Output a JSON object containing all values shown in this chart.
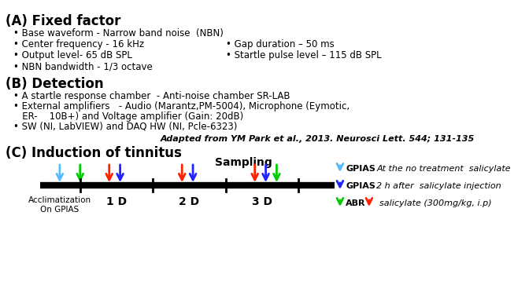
{
  "title_A": "(A) Fixed factor",
  "title_B": "(B) Detection",
  "title_C": "(C) Induction of tinnitus",
  "bullets_A_left": [
    "Base waveform - Narrow band noise  (NBN)",
    "Center frequency - 16 kHz",
    "Output level- 65 dB SPL",
    "NBN bandwidth - 1/3 octave"
  ],
  "bullets_A_right": [
    "Gap duration – 50 ms",
    "Startle pulse level – 115 dB SPL"
  ],
  "bullets_B": [
    "A startle response chamber  - Anti-noise chamber SR-LAB",
    "External amplifiers   - Audio (Marantz,PM-5004), Microphone (Eymotic,\n    ER-    10B+) and Voltage amplifier (Gain: 20dB)",
    "SW (NI, LabVIEW) and DAQ HW (NI, Pcle-6323)"
  ],
  "citation": "Adapted from YM Park et al., 2013. Neurosci Lett. 544; 131-135",
  "sampling_label": "Sampling",
  "legend_items": [
    {
      "color": "#00aaff",
      "label": "GPIAS",
      "desc": "At the no treatment  salicylate"
    },
    {
      "color": "#0000dd",
      "label": "GPIAS",
      "desc": "2 h after  salicylate injection"
    },
    {
      "color": "#00bb00",
      "label": "ABR",
      "desc": ""
    },
    {
      "color": "#ff2200",
      "label": "",
      "desc": "salicylate (300mg/kg, i.p)"
    }
  ],
  "day_labels": [
    "1 D",
    "2 D",
    "3 D"
  ],
  "accl_label": "Acclimatization\nOn GPIAS",
  "bg_color": "#ffffff"
}
